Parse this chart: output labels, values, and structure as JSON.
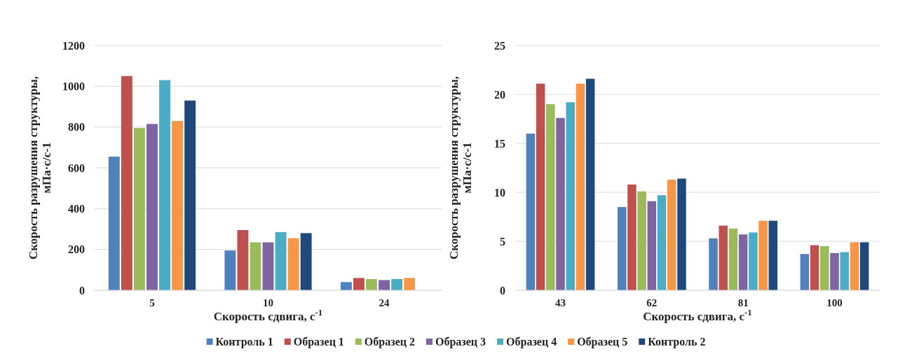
{
  "chart_data": [
    {
      "type": "bar",
      "categories": [
        "5",
        "10",
        "24"
      ],
      "xlabel": "Скорость сдвига, с$^{-1}$",
      "ylabel": "Скорость разрушения структуры, мПа·с/с-1",
      "ylim": [
        0,
        1200
      ],
      "yticks": [
        0,
        200,
        400,
        600,
        800,
        1000,
        1200
      ],
      "grid": "y",
      "legend": "bottom",
      "series": [
        {
          "name": "Контроль 1",
          "color": "#4f81bd",
          "values": [
            655,
            195,
            40
          ]
        },
        {
          "name": "Образец 1",
          "color": "#c0504d",
          "values": [
            1050,
            295,
            60
          ]
        },
        {
          "name": "Образец 2",
          "color": "#9bbb59",
          "values": [
            795,
            235,
            55
          ]
        },
        {
          "name": "Образец 3",
          "color": "#8064a2",
          "values": [
            815,
            235,
            50
          ]
        },
        {
          "name": "Образец 4",
          "color": "#4bacc6",
          "values": [
            1030,
            285,
            55
          ]
        },
        {
          "name": "Образец 5",
          "color": "#f79646",
          "values": [
            830,
            255,
            60
          ]
        },
        {
          "name": "Контроль 2",
          "color": "#1f497d",
          "values": [
            930,
            280,
            null
          ]
        }
      ]
    },
    {
      "type": "bar",
      "categories": [
        "43",
        "62",
        "81",
        "100"
      ],
      "xlabel": "Скорость сдвига, с$^{-1}$",
      "ylabel": "Скорость разрушения структуры, мПа·с/с-1",
      "ylim": [
        0,
        25
      ],
      "yticks": [
        0,
        5,
        10,
        15,
        20,
        25
      ],
      "grid": "y",
      "series": [
        {
          "color": "#4f81bd",
          "values": [
            16,
            8.5,
            5.3,
            3.7
          ]
        },
        {
          "color": "#c0504d",
          "values": [
            21.1,
            10.8,
            6.6,
            4.6
          ]
        },
        {
          "color": "#9bbb59",
          "values": [
            19,
            10.1,
            6.3,
            4.5
          ]
        },
        {
          "color": "#8064a2",
          "values": [
            17.6,
            9.1,
            5.7,
            3.8
          ]
        },
        {
          "color": "#4bacc6",
          "values": [
            19.2,
            9.7,
            5.9,
            3.9
          ]
        },
        {
          "color": "#f79646",
          "values": [
            21.1,
            11.3,
            7.1,
            4.9
          ]
        },
        {
          "color": "#1f497d",
          "values": [
            21.6,
            11.4,
            7.1,
            4.9
          ]
        }
      ]
    }
  ]
}
